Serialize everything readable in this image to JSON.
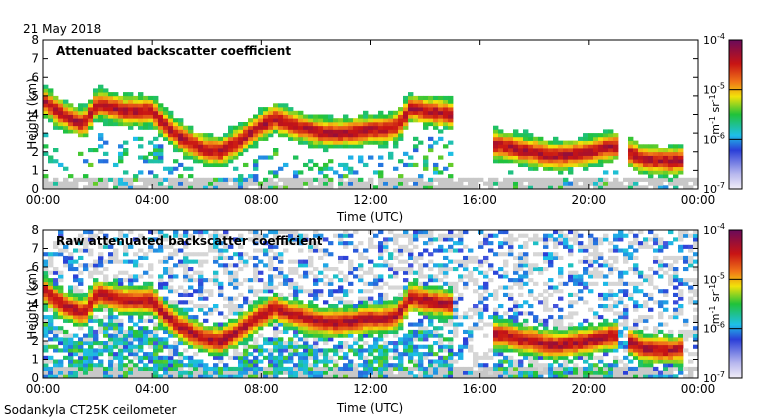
{
  "date_label": "21 May 2018",
  "footer_label": "Sodankyla CT25K ceilometer",
  "colors": {
    "low": "#c8c8c8",
    "scale": [
      "#ece6f6",
      "#2b3fd8",
      "#1ebfe8",
      "#20c23a",
      "#f2e20a",
      "#f07418",
      "#c81414",
      "#6a0a5a"
    ]
  },
  "chart_data": [
    {
      "type": "heatmap",
      "title": "Attenuated backscatter coefficient",
      "xlabel": "Time (UTC)",
      "ylabel": "Height (km)",
      "xlim": [
        0,
        24
      ],
      "ylim": [
        0,
        8
      ],
      "xticks": [
        0,
        4,
        8,
        12,
        16,
        20,
        24
      ],
      "xtick_labels": [
        "00:00",
        "04:00",
        "08:00",
        "12:00",
        "16:00",
        "20:00",
        "00:00"
      ],
      "yticks": [
        0,
        1,
        2,
        3,
        4,
        5,
        6,
        7,
        8
      ],
      "ytick_labels": [
        "0",
        "1",
        "2",
        "3",
        "4",
        "5",
        "6",
        "7",
        "8"
      ],
      "colorbar": {
        "label": "m-1 sr-1",
        "label_parts": [
          "m",
          "-1",
          " sr",
          "-1"
        ],
        "range": [
          1e-07,
          0.0001
        ],
        "scale": "log",
        "ticks": [
          {
            "base": "10",
            "exp": "-7"
          },
          {
            "base": "10",
            "exp": "-6"
          },
          {
            "base": "10",
            "exp": "-5"
          },
          {
            "base": "10",
            "exp": "-4"
          }
        ]
      },
      "layer_height_km": [
        [
          0,
          4.8
        ],
        [
          0.5,
          4.2
        ],
        [
          1,
          3.8
        ],
        [
          1.5,
          3.5
        ],
        [
          2,
          4.6
        ],
        [
          2.5,
          4.4
        ],
        [
          3,
          4.2
        ],
        [
          3.5,
          4.2
        ],
        [
          4,
          4.2
        ],
        [
          4.5,
          3.4
        ],
        [
          5,
          2.8
        ],
        [
          5.5,
          2.4
        ],
        [
          6,
          2.1
        ],
        [
          6.5,
          2.0
        ],
        [
          7,
          2.4
        ],
        [
          7.5,
          2.9
        ],
        [
          8,
          3.4
        ],
        [
          8.5,
          3.8
        ],
        [
          9,
          3.5
        ],
        [
          9.5,
          3.3
        ],
        [
          10,
          3.1
        ],
        [
          10.5,
          3.0
        ],
        [
          11,
          3.0
        ],
        [
          11.5,
          3.1
        ],
        [
          12,
          3.2
        ],
        [
          12.5,
          3.2
        ],
        [
          13,
          3.4
        ],
        [
          13.5,
          4.4
        ],
        [
          14,
          4.2
        ],
        [
          14.5,
          4.1
        ],
        [
          15,
          4.0
        ],
        [
          16.5,
          2.4
        ],
        [
          17,
          2.3
        ],
        [
          17.5,
          2.1
        ],
        [
          18,
          2.0
        ],
        [
          18.5,
          1.8
        ],
        [
          19,
          1.8
        ],
        [
          19.5,
          1.9
        ],
        [
          20,
          2.0
        ],
        [
          20.5,
          2.2
        ],
        [
          21,
          2.3
        ],
        [
          22,
          1.6
        ],
        [
          23,
          1.5
        ],
        [
          23.5,
          1.6
        ]
      ]
    },
    {
      "type": "heatmap",
      "title": "Raw attenuated backscatter coefficient",
      "xlabel": "Time (UTC)",
      "ylabel": "Height (km)",
      "xlim": [
        0,
        24
      ],
      "ylim": [
        0,
        8
      ],
      "xticks": [
        0,
        4,
        8,
        12,
        16,
        20,
        24
      ],
      "xtick_labels": [
        "00:00",
        "04:00",
        "08:00",
        "12:00",
        "16:00",
        "20:00",
        "00:00"
      ],
      "yticks": [
        0,
        1,
        2,
        3,
        4,
        5,
        6,
        7,
        8
      ],
      "ytick_labels": [
        "0",
        "1",
        "2",
        "3",
        "4",
        "5",
        "6",
        "7",
        "8"
      ],
      "colorbar": {
        "label": "m-1 sr-1",
        "label_parts": [
          "m",
          "-1",
          " sr",
          "-1"
        ],
        "range": [
          1e-07,
          0.0001
        ],
        "scale": "log",
        "ticks": [
          {
            "base": "10",
            "exp": "-7"
          },
          {
            "base": "10",
            "exp": "-6"
          },
          {
            "base": "10",
            "exp": "-5"
          },
          {
            "base": "10",
            "exp": "-4"
          }
        ]
      },
      "layer_height_km": [
        [
          0,
          4.8
        ],
        [
          0.5,
          4.2
        ],
        [
          1,
          3.8
        ],
        [
          1.5,
          3.5
        ],
        [
          2,
          4.6
        ],
        [
          2.5,
          4.4
        ],
        [
          3,
          4.2
        ],
        [
          3.5,
          4.2
        ],
        [
          4,
          4.2
        ],
        [
          4.5,
          3.4
        ],
        [
          5,
          2.8
        ],
        [
          5.5,
          2.4
        ],
        [
          6,
          2.1
        ],
        [
          6.5,
          2.0
        ],
        [
          7,
          2.4
        ],
        [
          7.5,
          2.9
        ],
        [
          8,
          3.4
        ],
        [
          8.5,
          3.8
        ],
        [
          9,
          3.5
        ],
        [
          9.5,
          3.3
        ],
        [
          10,
          3.1
        ],
        [
          10.5,
          3.0
        ],
        [
          11,
          3.0
        ],
        [
          11.5,
          3.1
        ],
        [
          12,
          3.2
        ],
        [
          12.5,
          3.2
        ],
        [
          13,
          3.4
        ],
        [
          13.5,
          4.4
        ],
        [
          14,
          4.2
        ],
        [
          14.5,
          4.1
        ],
        [
          15,
          4.0
        ],
        [
          16.5,
          2.4
        ],
        [
          17,
          2.3
        ],
        [
          17.5,
          2.1
        ],
        [
          18,
          2.0
        ],
        [
          18.5,
          1.8
        ],
        [
          19,
          1.8
        ],
        [
          19.5,
          1.9
        ],
        [
          20,
          2.0
        ],
        [
          20.5,
          2.2
        ],
        [
          21,
          2.3
        ],
        [
          22,
          1.6
        ],
        [
          23,
          1.5
        ],
        [
          23.5,
          1.6
        ]
      ]
    }
  ]
}
